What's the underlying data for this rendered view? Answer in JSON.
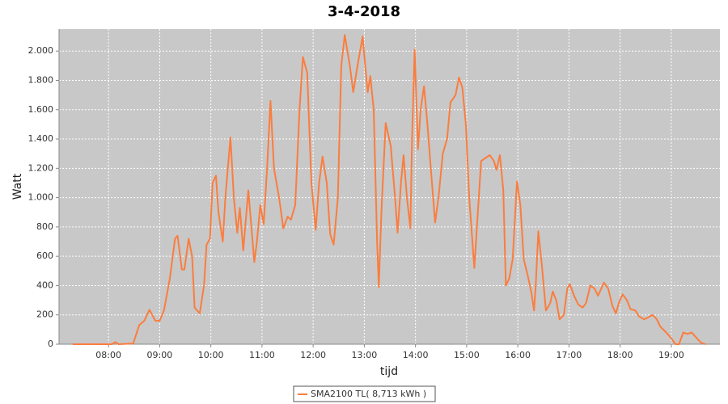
{
  "chart_data": {
    "type": "line",
    "title": "3-4-2018",
    "x_label": "tijd",
    "y_label": "Watt",
    "x": [
      "07:18",
      "07:56",
      "08:04",
      "08:08",
      "08:12",
      "08:29",
      "08:36",
      "08:42",
      "08:48",
      "08:55",
      "09:00",
      "09:05",
      "09:12",
      "09:18",
      "09:21",
      "09:26",
      "09:29",
      "09:34",
      "09:38",
      "09:41",
      "09:47",
      "09:52",
      "09:55",
      "09:59",
      "10:02",
      "10:06",
      "10:09",
      "10:14",
      "10:17",
      "10:23",
      "10:27",
      "10:31",
      "10:34",
      "10:38",
      "10:44",
      "10:51",
      "10:54",
      "10:58",
      "11:02",
      "11:06",
      "11:10",
      "11:14",
      "11:20",
      "11:25",
      "11:30",
      "11:34",
      "11:39",
      "11:44",
      "11:48",
      "11:53",
      "11:58",
      "12:03",
      "12:07",
      "12:11",
      "12:16",
      "12:20",
      "12:24",
      "12:29",
      "12:33",
      "12:37",
      "12:43",
      "12:47",
      "12:52",
      "12:58",
      "13:01",
      "13:04",
      "13:07",
      "13:11",
      "13:15",
      "13:17",
      "13:20",
      "13:25",
      "13:31",
      "13:36",
      "13:39",
      "13:43",
      "13:46",
      "13:50",
      "13:54",
      "13:56",
      "13:59",
      "14:03",
      "14:06",
      "14:10",
      "14:14",
      "14:18",
      "14:23",
      "14:27",
      "14:32",
      "14:37",
      "14:41",
      "14:47",
      "14:51",
      "14:55",
      "14:59",
      "15:03",
      "15:09",
      "15:12",
      "15:17",
      "15:22",
      "15:27",
      "15:32",
      "15:35",
      "15:39",
      "15:43",
      "15:46",
      "15:50",
      "15:54",
      "15:59",
      "16:03",
      "16:07",
      "16:12",
      "16:16",
      "16:19",
      "16:21",
      "16:24",
      "16:28",
      "16:33",
      "16:38",
      "16:41",
      "16:45",
      "16:49",
      "16:54",
      "16:58",
      "17:01",
      "17:06",
      "17:11",
      "17:16",
      "17:20",
      "17:25",
      "17:30",
      "17:34",
      "17:41",
      "17:46",
      "17:51",
      "17:55",
      "17:59",
      "18:03",
      "18:08",
      "18:12",
      "18:18",
      "18:22",
      "18:28",
      "18:32",
      "18:38",
      "18:43",
      "18:47",
      "18:54",
      "19:00",
      "19:05",
      "19:09",
      "19:14",
      "19:19",
      "19:24",
      "19:30",
      "19:35",
      "19:40"
    ],
    "series": [
      {
        "name": "SMA2100 TL( 8,713 kWh )",
        "color": "#fb7d3e",
        "values": [
          0,
          0,
          0,
          15,
          0,
          5,
          130,
          160,
          235,
          160,
          160,
          230,
          450,
          720,
          740,
          510,
          510,
          720,
          600,
          250,
          210,
          400,
          680,
          720,
          1100,
          1150,
          900,
          700,
          1000,
          1410,
          1000,
          760,
          930,
          640,
          1050,
          560,
          700,
          950,
          820,
          1200,
          1660,
          1200,
          1000,
          790,
          870,
          850,
          950,
          1600,
          1960,
          1850,
          1100,
          780,
          1100,
          1280,
          1100,
          750,
          680,
          1000,
          1900,
          2110,
          1900,
          1720,
          1900,
          2100,
          1900,
          1720,
          1830,
          1600,
          700,
          390,
          900,
          1510,
          1350,
          1000,
          760,
          1100,
          1290,
          1000,
          790,
          1400,
          2010,
          1330,
          1600,
          1760,
          1500,
          1200,
          830,
          1000,
          1300,
          1400,
          1650,
          1700,
          1820,
          1750,
          1500,
          1000,
          520,
          800,
          1250,
          1270,
          1290,
          1250,
          1190,
          1290,
          1050,
          400,
          450,
          580,
          1110,
          950,
          580,
          460,
          350,
          230,
          400,
          770,
          550,
          230,
          280,
          360,
          300,
          170,
          200,
          380,
          410,
          330,
          270,
          250,
          280,
          400,
          380,
          330,
          420,
          380,
          260,
          210,
          290,
          340,
          300,
          240,
          230,
          190,
          170,
          180,
          200,
          170,
          120,
          80,
          40,
          0,
          0,
          80,
          70,
          80,
          40,
          10,
          0
        ]
      }
    ],
    "xlim": [
      "07:02",
      "19:57"
    ],
    "xticks": [
      "08:00",
      "09:00",
      "10:00",
      "11:00",
      "12:00",
      "13:00",
      "14:00",
      "15:00",
      "16:00",
      "17:00",
      "18:00",
      "19:00"
    ],
    "ylim": [
      0,
      2150
    ],
    "yticks": [
      0,
      200,
      400,
      600,
      800,
      {
        "value": 1000,
        "label": "1.000"
      },
      {
        "value": 1200,
        "label": "1.200"
      },
      {
        "value": 1400,
        "label": "1.400"
      },
      {
        "value": 1600,
        "label": "1.600"
      },
      {
        "value": 1800,
        "label": "1.800"
      },
      {
        "value": 2000,
        "label": "2.000"
      }
    ],
    "grid": true
  }
}
